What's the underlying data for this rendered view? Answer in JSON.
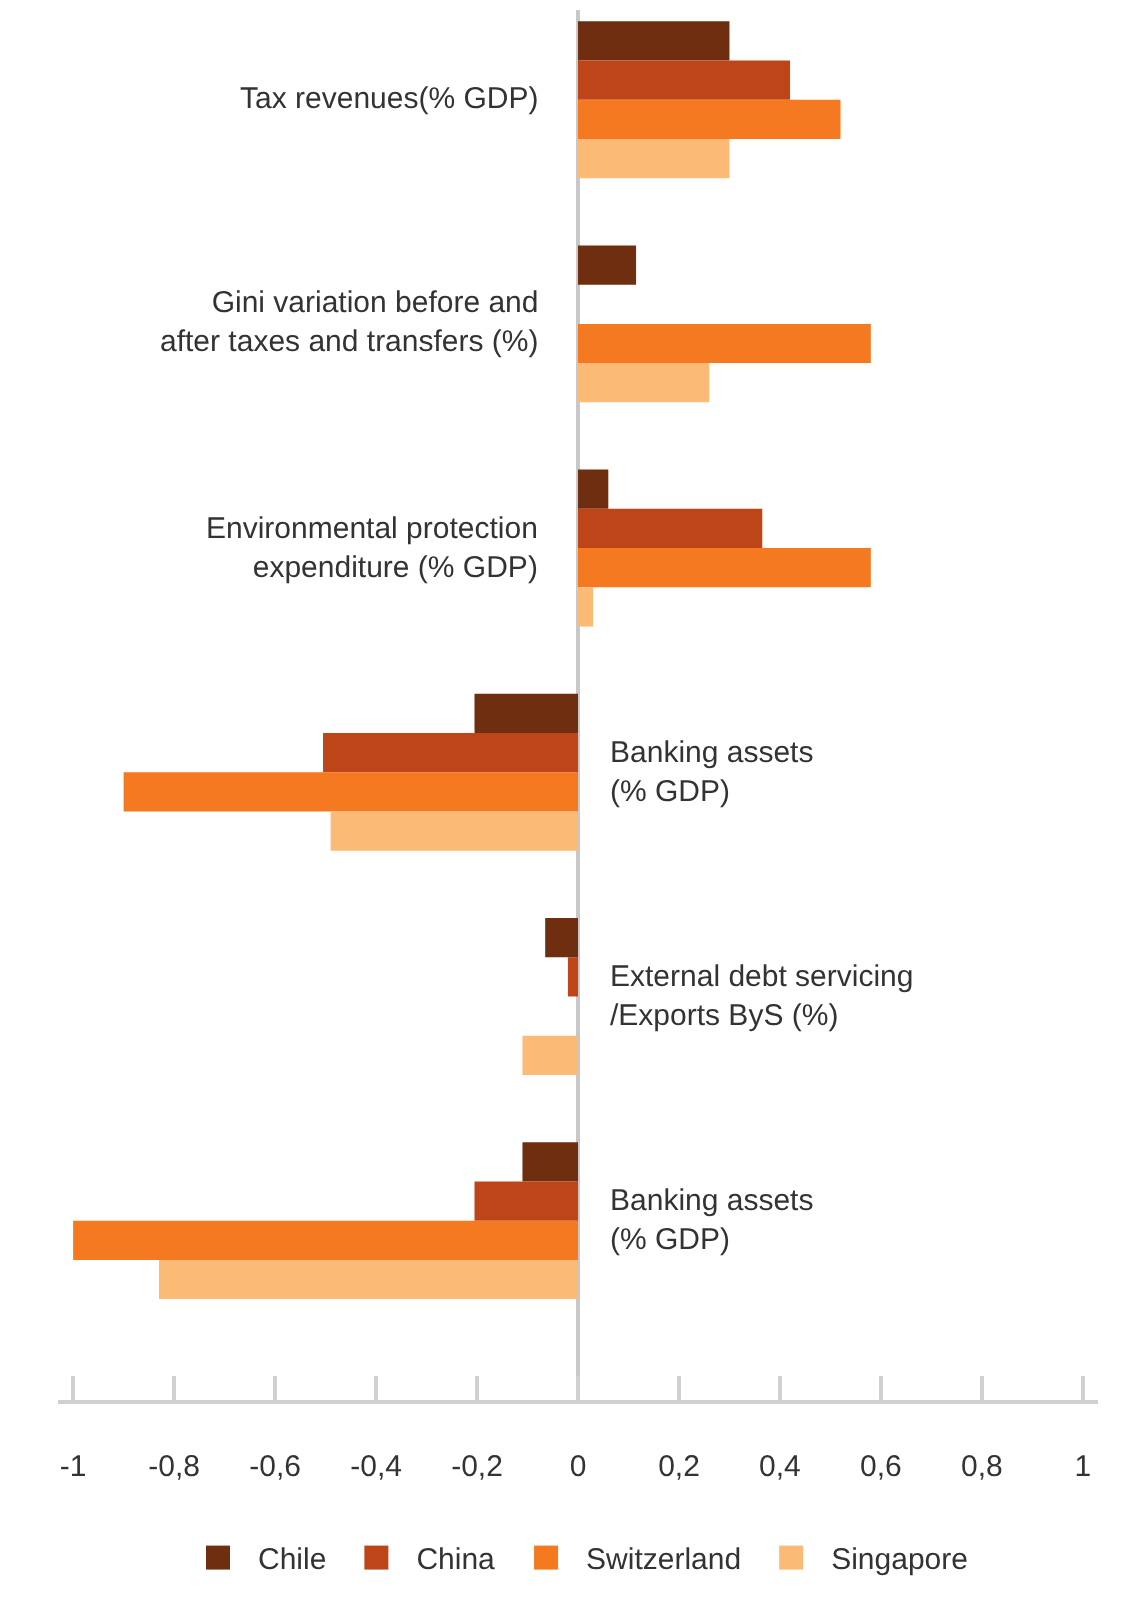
{
  "chart_data": {
    "type": "bar",
    "orientation": "horizontal",
    "categories": [
      "Tax revenues(% GDP)",
      "Gini variation before and\nafter taxes and transfers (%)",
      "Environmental protection\nexpenditure (% GDP)",
      "Banking assets\n(% GDP)",
      "External debt servicing\n/Exports ByS (%)",
      "Banking assets\n(% GDP)"
    ],
    "series": [
      {
        "name": "Chile",
        "color": "#6f2e10",
        "values": [
          0.3,
          0.115,
          0.06,
          -0.205,
          -0.065,
          -0.11
        ]
      },
      {
        "name": "China",
        "color": "#bd4518",
        "values": [
          0.42,
          null,
          0.365,
          -0.505,
          -0.02,
          -0.205
        ]
      },
      {
        "name": "Switzerland",
        "color": "#f47920",
        "values": [
          0.52,
          0.58,
          0.58,
          -0.9,
          null,
          -1.0
        ]
      },
      {
        "name": "Singapore",
        "color": "#fbba75",
        "values": [
          0.3,
          0.26,
          0.03,
          -0.49,
          -0.11,
          -0.83
        ]
      }
    ],
    "xlim": [
      -1.03,
      1.03
    ],
    "xticks": [
      {
        "value": -1,
        "label": "-1"
      },
      {
        "value": -0.8,
        "label": "-0,8"
      },
      {
        "value": -0.6,
        "label": "-0,6"
      },
      {
        "value": -0.4,
        "label": "-0,4"
      },
      {
        "value": -0.2,
        "label": "-0,2"
      },
      0,
      {
        "value": 0.2,
        "label": "0,2"
      },
      {
        "value": 0.4,
        "label": "0,4"
      },
      {
        "value": 0.6,
        "label": "0,6"
      },
      {
        "value": 0.8,
        "label": "0,8"
      },
      1
    ],
    "grid": false,
    "legend": "bottom"
  }
}
